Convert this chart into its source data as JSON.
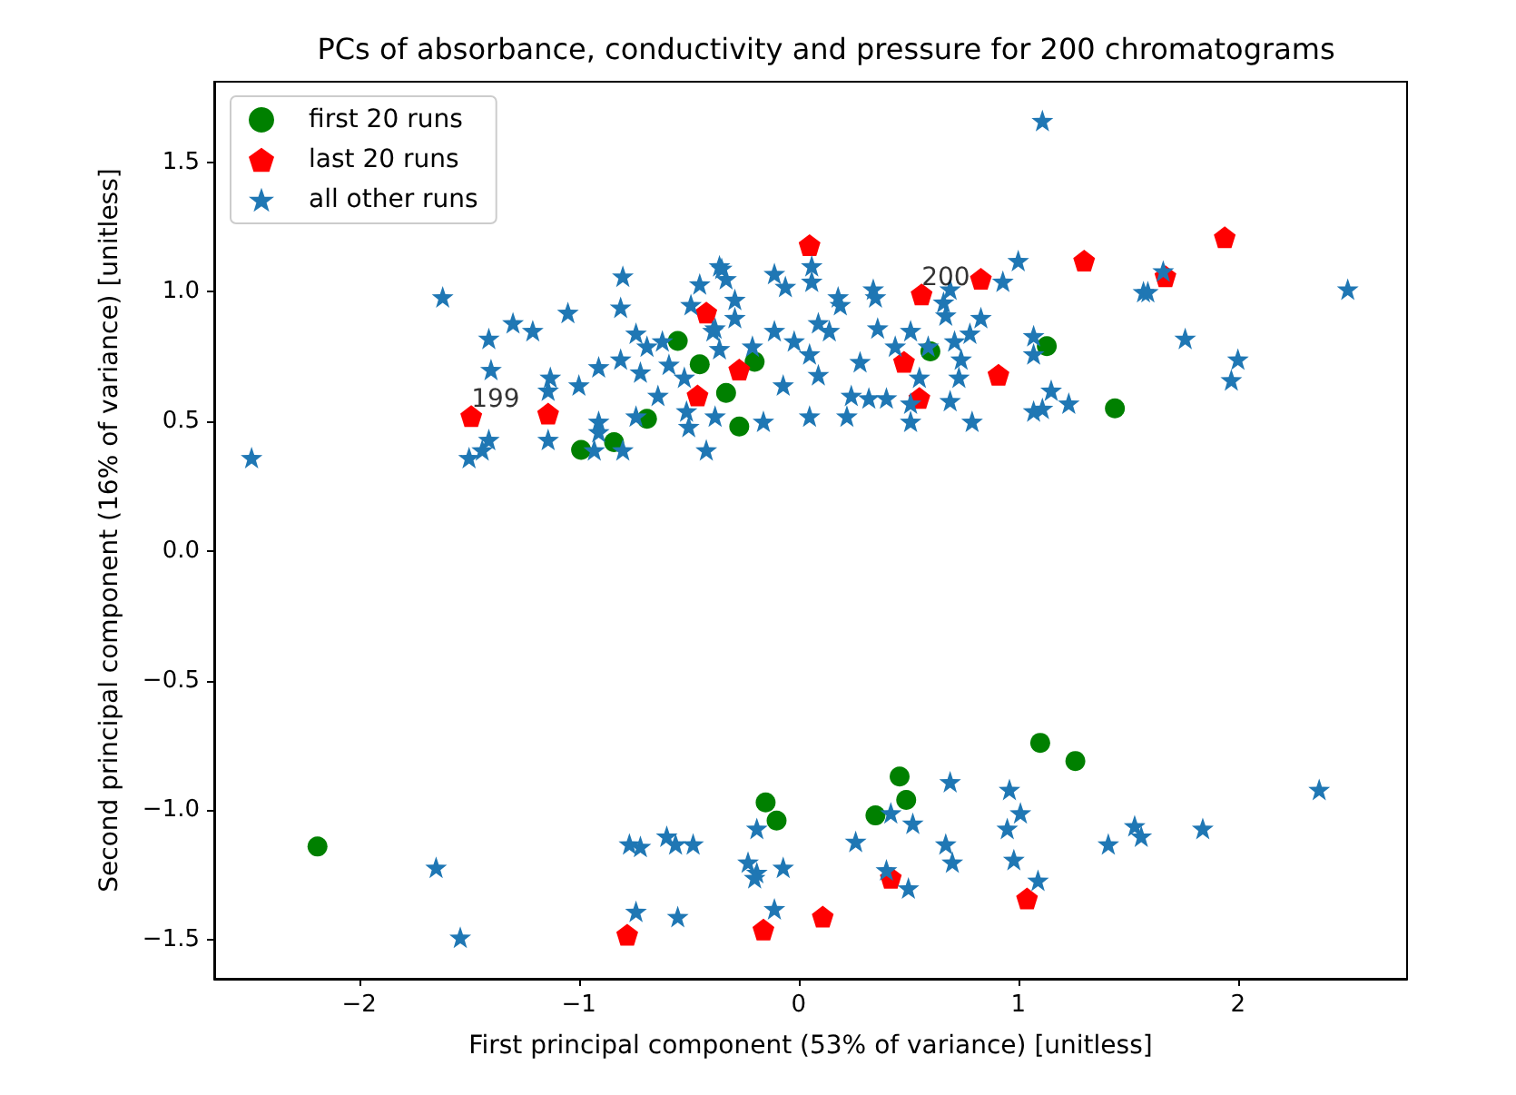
{
  "chart_data": {
    "type": "scatter",
    "title": "PCs of absorbance, conductivity and pressure for 200 chromatograms",
    "xlabel": "First principal component (53% of variance) [unitless]",
    "ylabel": "Second principal component (16% of variance) [unitless]",
    "xlim": [
      -2.66,
      2.77
    ],
    "ylim": [
      -1.65,
      1.81
    ],
    "xticks": [
      {
        "value": -2,
        "label": "−2"
      },
      {
        "value": -1,
        "label": "−1"
      },
      0,
      1,
      2
    ],
    "yticks": [
      {
        "value": -1.5,
        "label": "−1.5"
      },
      {
        "value": -1,
        "label": "−1.0"
      },
      {
        "value": -0.5,
        "label": "−0.5"
      },
      {
        "value": 0,
        "label": "0.0"
      },
      0.5,
      {
        "value": 1,
        "label": "1.0"
      },
      1.5
    ],
    "grid": false,
    "legend": "top left",
    "annotations": [
      {
        "text": "199",
        "x": -1.49,
        "y": 0.52
      },
      {
        "text": "200",
        "x": 0.56,
        "y": 0.99
      }
    ],
    "series": [
      {
        "name": "first 20 runs",
        "color": "#008000",
        "marker": "circle",
        "x": [
          -0.99,
          -0.84,
          -0.69,
          -0.55,
          -0.45,
          -0.33,
          -0.27,
          -0.2,
          0.6,
          1.13,
          1.44,
          -2.19,
          -0.15,
          -0.1,
          1.1,
          1.26,
          0.46,
          0.49,
          0.35
        ],
        "values": [
          0.39,
          0.42,
          0.51,
          0.81,
          0.72,
          0.61,
          0.48,
          0.73,
          0.77,
          0.79,
          0.55,
          -1.14,
          -0.97,
          -1.04,
          -0.74,
          -0.81,
          -0.87,
          -0.96,
          -1.02
        ]
      },
      {
        "name": "last 20 runs",
        "color": "#ff0000",
        "x": [
          -1.49,
          -1.14,
          -0.42,
          -0.27,
          -0.46,
          0.05,
          0.56,
          0.83,
          1.3,
          0.48,
          0.55,
          0.91,
          1.94,
          1.67,
          -0.78,
          -0.16,
          0.11,
          0.42,
          1.04
        ],
        "values": [
          0.52,
          0.53,
          0.92,
          0.7,
          0.6,
          1.18,
          0.99,
          1.05,
          1.12,
          0.73,
          0.59,
          0.68,
          1.21,
          1.06,
          -1.48,
          -1.46,
          -1.41,
          -1.26,
          -1.34
        ]
      },
      {
        "name": "all other runs",
        "color": "#1f77b4",
        "marker": "star",
        "x": [
          -2.49,
          -1.62,
          -0.8,
          -0.36,
          -0.33,
          -0.45,
          -1.3,
          -1.21,
          -1.41,
          -1.05,
          -0.81,
          -1.4,
          -1.13,
          -1.14,
          -1.0,
          -0.91,
          -0.81,
          -0.74,
          -0.69,
          -0.72,
          -0.62,
          -0.49,
          -0.39,
          -0.36,
          -0.64,
          -0.74,
          -0.51,
          -0.38,
          -0.5,
          -0.42,
          -0.91,
          -0.91,
          -1.14,
          -1.41,
          -1.44,
          -1.5,
          -0.8,
          -0.93,
          -0.59,
          -0.52,
          -0.35,
          -0.11,
          -0.06,
          0.06,
          0.06,
          -0.29,
          -0.29,
          -0.38,
          0.18,
          0.19,
          0.34,
          0.35,
          0.66,
          0.67,
          0.69,
          0.93,
          1.0,
          1.11,
          1.57,
          0.83,
          -0.21,
          -0.11,
          -0.02,
          0.09,
          0.14,
          0.05,
          0.09,
          -0.07,
          0.28,
          0.36,
          0.44,
          0.51,
          0.59,
          0.71,
          0.78,
          0.74,
          0.73,
          0.55,
          0.24,
          0.32,
          0.4,
          0.51,
          0.69,
          0.22,
          0.05,
          -0.16,
          0.51,
          0.79,
          1.07,
          1.07,
          1.15,
          1.07,
          1.11,
          1.23,
          1.66,
          1.59,
          1.76,
          2.0,
          1.97,
          2.5,
          -1.65,
          -1.54,
          -0.77,
          -0.72,
          -0.6,
          -0.56,
          -0.48,
          -0.74,
          -0.55,
          -0.19,
          -0.23,
          -0.19,
          -0.07,
          -0.2,
          -0.11,
          0.26,
          0.42,
          0.52,
          0.69,
          0.67,
          0.7,
          0.4,
          0.5,
          0.96,
          1.01,
          0.95,
          0.98,
          1.09,
          1.41,
          1.53,
          1.56,
          1.84,
          2.37
        ],
        "values": [
          0.36,
          0.98,
          1.06,
          1.1,
          1.05,
          1.03,
          0.88,
          0.85,
          0.82,
          0.92,
          0.94,
          0.7,
          0.67,
          0.62,
          0.64,
          0.71,
          0.74,
          0.84,
          0.79,
          0.69,
          0.81,
          0.95,
          0.85,
          0.78,
          0.6,
          0.52,
          0.54,
          0.52,
          0.48,
          0.39,
          0.5,
          0.46,
          0.43,
          0.43,
          0.39,
          0.36,
          0.39,
          0.39,
          0.72,
          0.67,
          1.09,
          1.07,
          1.02,
          1.1,
          1.04,
          0.97,
          0.9,
          0.86,
          0.98,
          0.95,
          1.01,
          0.98,
          0.96,
          0.91,
          1.01,
          1.04,
          1.12,
          1.66,
          1.0,
          0.9,
          0.79,
          0.85,
          0.81,
          0.88,
          0.85,
          0.76,
          0.68,
          0.64,
          0.73,
          0.86,
          0.79,
          0.85,
          0.79,
          0.81,
          0.84,
          0.74,
          0.67,
          0.67,
          0.6,
          0.59,
          0.59,
          0.57,
          0.58,
          0.52,
          0.52,
          0.5,
          0.5,
          0.5,
          0.83,
          0.76,
          0.62,
          0.54,
          0.55,
          0.57,
          1.08,
          1.0,
          0.82,
          0.74,
          0.66,
          1.01,
          -1.22,
          -1.49,
          -1.13,
          -1.14,
          -1.1,
          -1.13,
          -1.13,
          -1.39,
          -1.41,
          -1.07,
          -1.2,
          -1.24,
          -1.22,
          -1.26,
          -1.38,
          -1.12,
          -1.01,
          -1.05,
          -0.89,
          -1.13,
          -1.2,
          -1.23,
          -1.3,
          -0.92,
          -1.01,
          -1.07,
          -1.19,
          -1.27,
          -1.13,
          -1.06,
          -1.1,
          -1.07,
          -0.92
        ]
      }
    ]
  }
}
